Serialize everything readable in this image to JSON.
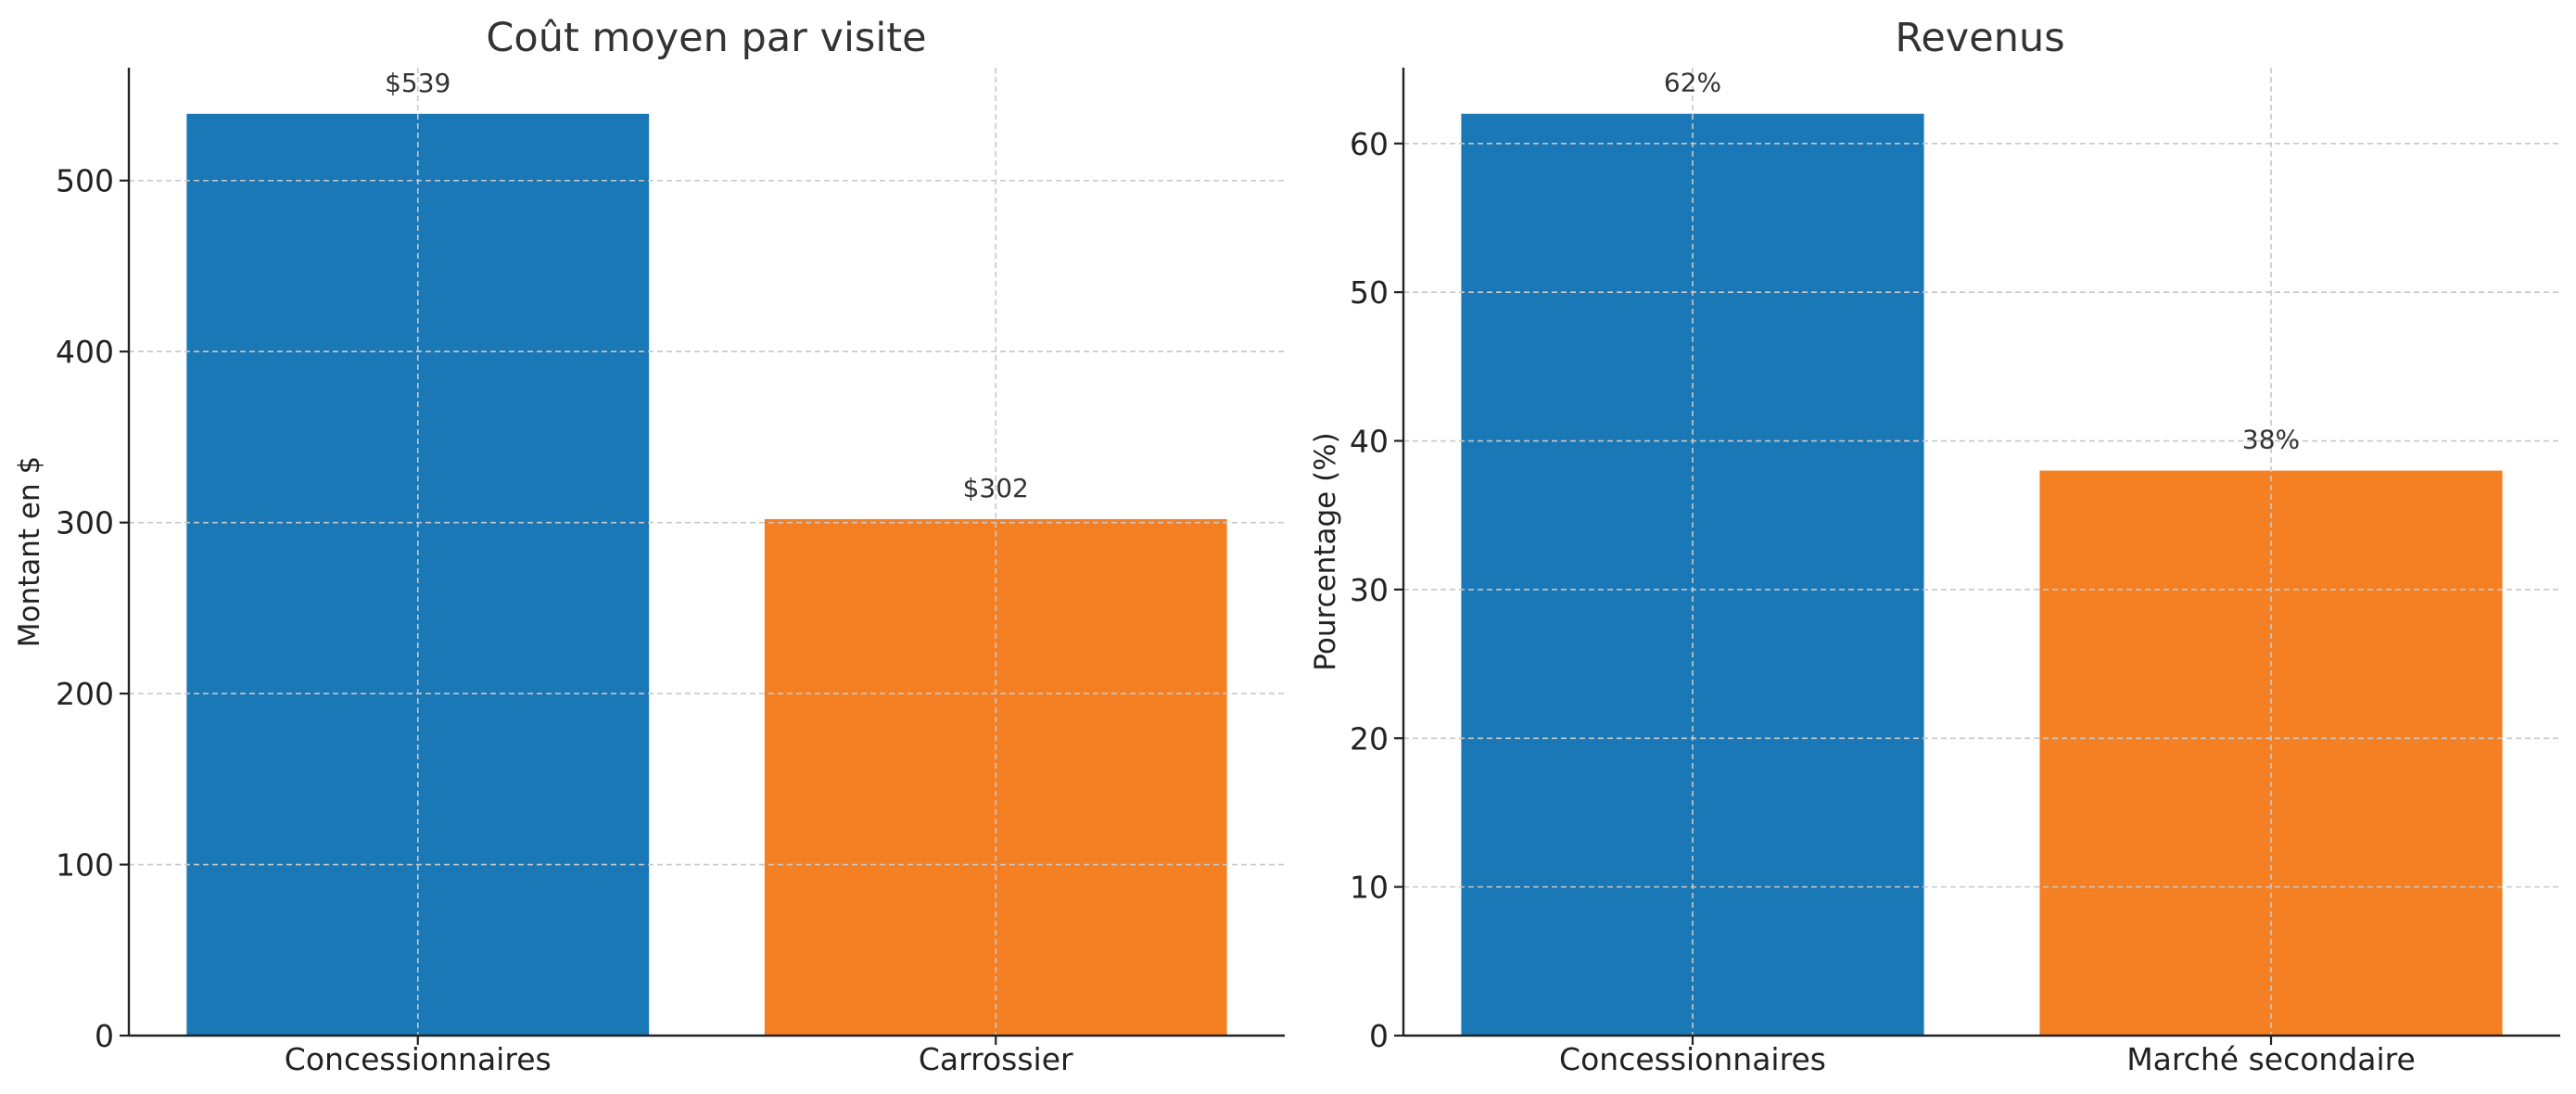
{
  "colors": {
    "series_a": "#1a78b7",
    "series_b": "#f58024",
    "grid": "#c8c8c8",
    "axis": "#222222",
    "text": "#333333"
  },
  "chart_data": [
    {
      "type": "bar",
      "title": "Coût moyen par visite",
      "xlabel": "",
      "ylabel": "Montant en $",
      "categories": [
        "Concessionnaires",
        "Carrossier"
      ],
      "values": [
        539,
        302
      ],
      "data_labels": [
        "$539",
        "$302"
      ],
      "bar_colors": [
        "#1a78b7",
        "#f58024"
      ],
      "ylim": [
        0,
        566
      ],
      "yticks": [
        0,
        100,
        200,
        300,
        400,
        500
      ],
      "grid": true
    },
    {
      "type": "bar",
      "title": "Revenus",
      "xlabel": "",
      "ylabel": "Pourcentage (%)",
      "categories": [
        "Concessionnaires",
        "Marché secondaire"
      ],
      "values": [
        62,
        38
      ],
      "data_labels": [
        "62%",
        "38%"
      ],
      "bar_colors": [
        "#1a78b7",
        "#f58024"
      ],
      "ylim": [
        0,
        65.1
      ],
      "yticks": [
        0,
        10,
        20,
        30,
        40,
        50,
        60
      ],
      "grid": true
    }
  ]
}
